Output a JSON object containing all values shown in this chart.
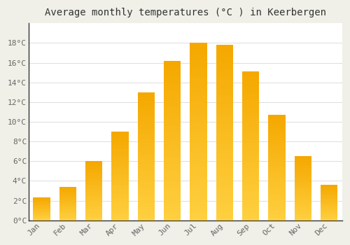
{
  "title": "Average monthly temperatures (°C ) in Keerbergen",
  "months": [
    "Jan",
    "Feb",
    "Mar",
    "Apr",
    "May",
    "Jun",
    "Jul",
    "Aug",
    "Sep",
    "Oct",
    "Nov",
    "Dec"
  ],
  "values": [
    2.3,
    3.4,
    6.0,
    9.0,
    13.0,
    16.2,
    18.0,
    17.8,
    15.1,
    10.7,
    6.5,
    3.6
  ],
  "bar_color_top": "#F5A800",
  "bar_color_bottom": "#FFD040",
  "background_plot": "#FFFFFF",
  "background_fig": "#F0F0E8",
  "grid_color": "#DDDDDD",
  "spine_color": "#333333",
  "tick_color": "#666666",
  "title_color": "#333333",
  "ylim": [
    0,
    20
  ],
  "yticks": [
    0,
    2,
    4,
    6,
    8,
    10,
    12,
    14,
    16,
    18
  ],
  "title_fontsize": 10,
  "tick_fontsize": 8,
  "bar_width": 0.65,
  "n_gradient_steps": 60
}
